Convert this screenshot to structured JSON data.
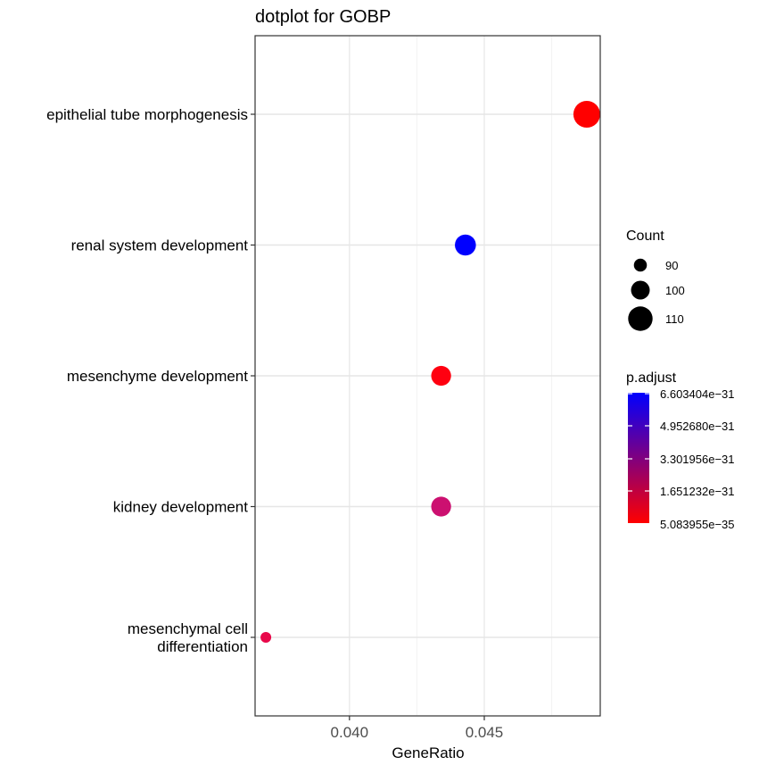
{
  "chart_data": {
    "type": "scatter",
    "title": "dotplot for GOBP",
    "xlabel": "GeneRatio",
    "ylabel": "",
    "xlim": [
      0.0365,
      0.0493
    ],
    "x_ticks": [
      {
        "value": 0.04,
        "label": "0.040"
      },
      {
        "value": 0.045,
        "label": "0.045"
      }
    ],
    "grid": true,
    "categories": [
      "epithelial tube morphogenesis",
      "renal system development",
      "mesenchyme development",
      "kidney development",
      "mesenchymal cell differentiation"
    ],
    "category_lines": [
      [
        "epithelial tube morphogenesis"
      ],
      [
        "renal system development"
      ],
      [
        "mesenchyme development"
      ],
      [
        "kidney development"
      ],
      [
        "mesenchymal cell",
        "differentiation"
      ]
    ],
    "points": [
      {
        "term": "epithelial tube morphogenesis",
        "gene_ratio": 0.0488,
        "count": 114,
        "p_adjust": 5.2e-35,
        "color": "#ff0000"
      },
      {
        "term": "renal system development",
        "gene_ratio": 0.0443,
        "count": 104,
        "p_adjust": 6.6e-31,
        "color": "#0000ff"
      },
      {
        "term": "mesenchyme development",
        "gene_ratio": 0.0434,
        "count": 102,
        "p_adjust": 1e-32,
        "color": "#ff0010"
      },
      {
        "term": "kidney development",
        "gene_ratio": 0.0434,
        "count": 102,
        "p_adjust": 2.8e-31,
        "color": "#cc1070"
      },
      {
        "term": "mesenchymal cell differentiation",
        "gene_ratio": 0.0369,
        "count": 86,
        "p_adjust": 1.3e-31,
        "color": "#e8084a"
      }
    ],
    "legend": {
      "placement": "right",
      "size_title": "Count",
      "size_entries": [
        {
          "label": "90",
          "value": 90
        },
        {
          "label": "100",
          "value": 100
        },
        {
          "label": "110",
          "value": 110
        }
      ],
      "color_title": "p.adjust",
      "color_low": "#ff0000",
      "color_high": "#0000ff",
      "color_labels": [
        "6.603404e−31",
        "4.952680e−31",
        "3.301956e−31",
        "1.651232e−31",
        "5.083955e−35"
      ]
    }
  }
}
